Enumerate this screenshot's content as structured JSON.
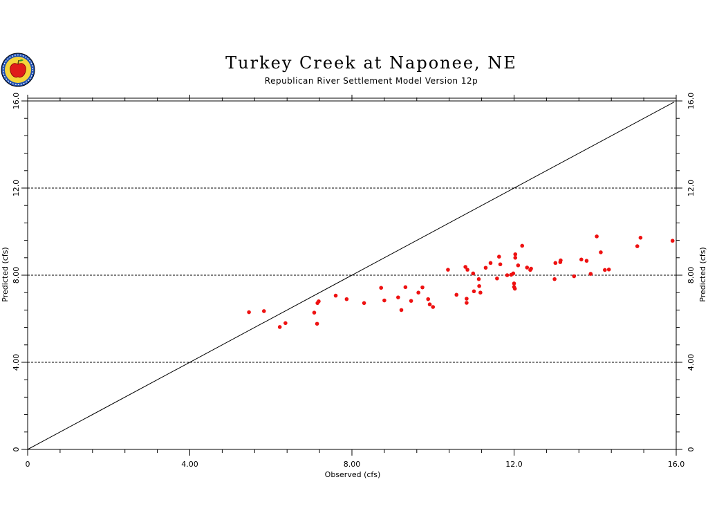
{
  "header": {
    "title": "Turkey Creek at Naponee, NE",
    "subtitle": "Republican River Settlement Model Version 12p"
  },
  "colors": {
    "points": "#ee1111",
    "axes": "#000000"
  },
  "icons": {
    "logo": "apple-seal-logo"
  },
  "chart_data": {
    "type": "scatter",
    "title": "Turkey Creek at Naponee, NE",
    "subtitle": "Republican River Settlement Model Version 12p",
    "xlabel": "Observed (cfs)",
    "ylabel": "Predicted (cfs)",
    "xlim": [
      0,
      16
    ],
    "ylim": [
      0,
      16
    ],
    "x_ticks": [
      0,
      4,
      8,
      12,
      16
    ],
    "x_tick_labels": [
      "0",
      "4.00",
      "8.00",
      "12.0",
      "16.0"
    ],
    "y_ticks": [
      0,
      4,
      8,
      12,
      16
    ],
    "y_tick_labels": [
      "0",
      "4.00",
      "8.00",
      "12.0",
      "16.0"
    ],
    "grid": "horizontal dashed",
    "reference_line": {
      "type": "1:1",
      "from": [
        0,
        0
      ],
      "to": [
        15.95,
        15.95
      ]
    },
    "x": [
      5.46,
      5.83,
      6.22,
      6.36,
      7.07,
      7.14,
      7.15,
      7.18,
      7.6,
      7.87,
      8.3,
      8.72,
      8.8,
      9.14,
      9.22,
      9.32,
      9.46,
      9.64,
      9.74,
      9.88,
      9.92,
      10.0,
      10.37,
      10.58,
      10.8,
      10.83,
      10.83,
      10.85,
      10.99,
      11.01,
      11.13,
      11.14,
      11.17,
      11.3,
      11.42,
      11.58,
      11.63,
      11.66,
      11.83,
      11.93,
      11.98,
      12.0,
      12.0,
      12.02,
      12.03,
      12.03,
      12.1,
      12.2,
      12.32,
      12.4,
      12.42,
      13.0,
      13.02,
      13.14,
      13.15,
      13.48,
      13.66,
      13.79,
      13.89,
      14.04,
      14.14,
      14.24,
      14.34,
      15.04,
      15.12,
      15.91
    ],
    "y": [
      6.3,
      6.35,
      5.62,
      5.8,
      6.28,
      5.77,
      6.72,
      6.8,
      7.06,
      6.9,
      6.72,
      7.42,
      6.84,
      6.98,
      6.4,
      7.45,
      6.82,
      7.2,
      7.44,
      6.9,
      6.66,
      6.54,
      8.25,
      7.1,
      8.38,
      6.92,
      6.73,
      8.25,
      8.08,
      7.26,
      7.82,
      7.5,
      7.2,
      8.34,
      8.56,
      7.85,
      8.85,
      8.5,
      8.0,
      8.02,
      8.08,
      7.62,
      7.46,
      7.38,
      8.8,
      8.96,
      8.45,
      9.35,
      8.35,
      8.24,
      8.3,
      7.82,
      8.56,
      8.6,
      8.68,
      7.95,
      8.72,
      8.66,
      8.06,
      9.78,
      9.05,
      8.24,
      8.26,
      9.33,
      9.72,
      9.58
    ]
  }
}
